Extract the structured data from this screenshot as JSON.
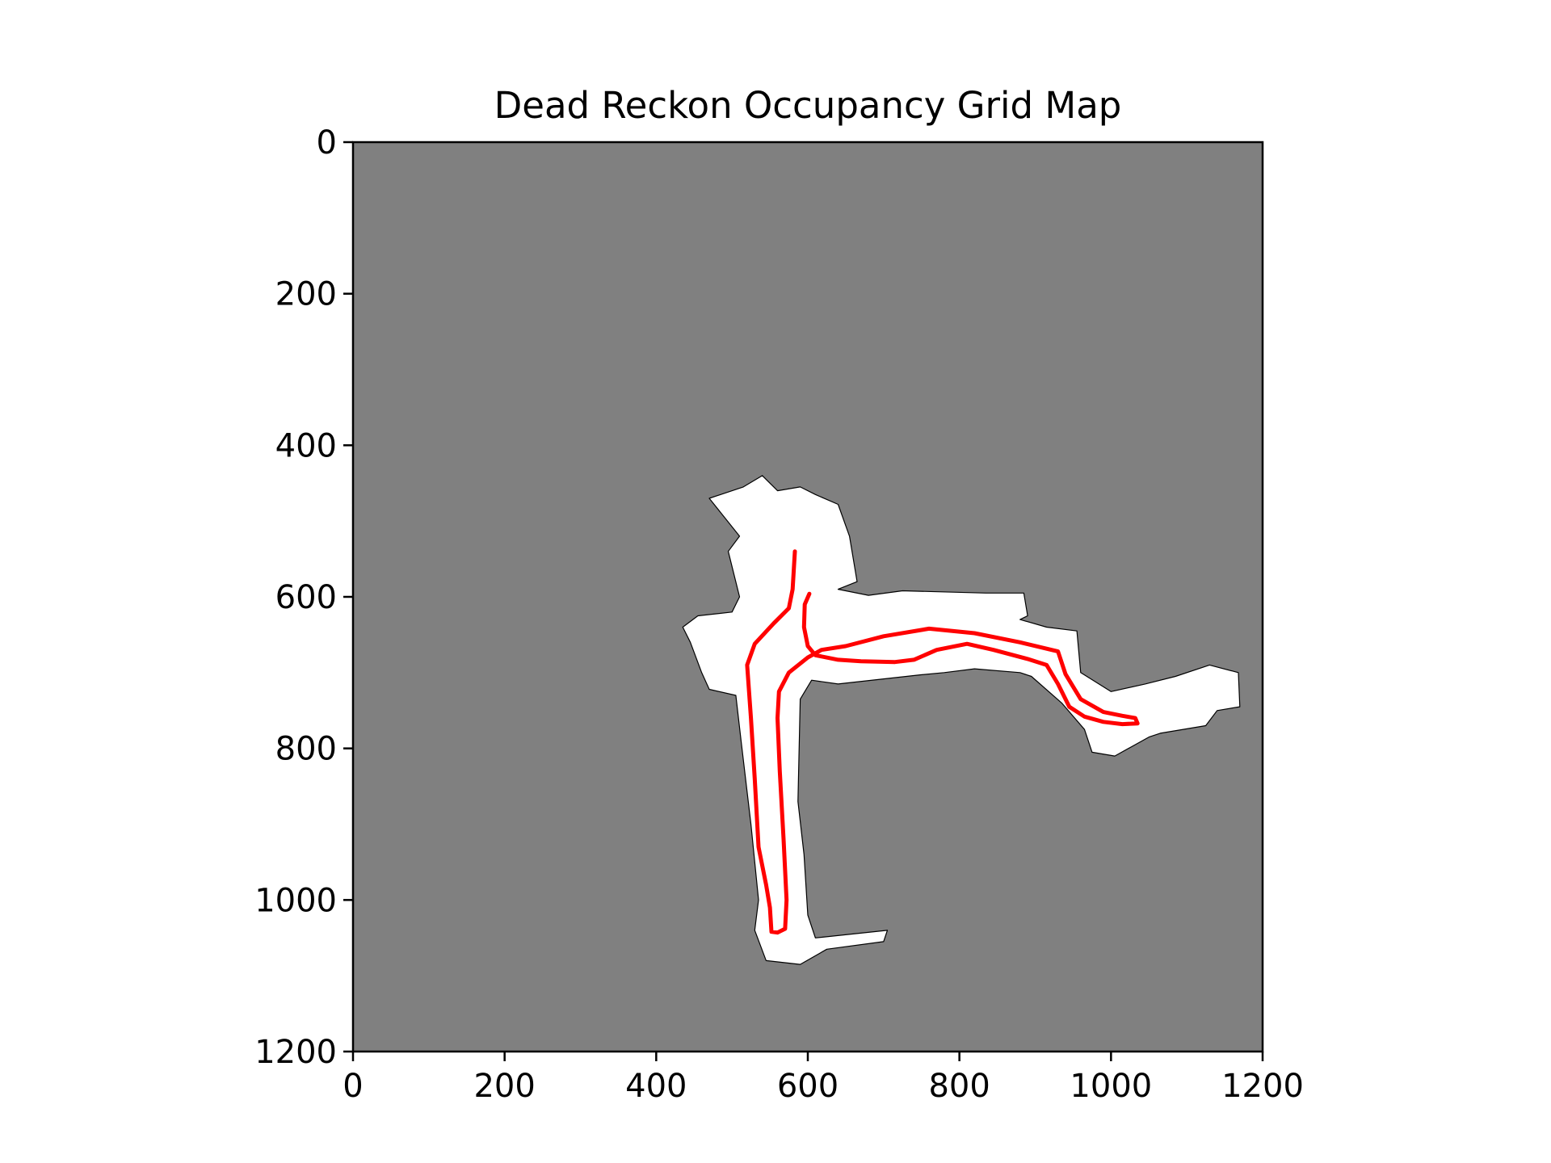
{
  "chart_data": {
    "type": "heatmap",
    "title": "Dead Reckon Occupancy Grid Map",
    "xlabel": "",
    "ylabel": "",
    "xlim": [
      0,
      1200
    ],
    "ylim": [
      1200,
      0
    ],
    "y_axis_inverted": true,
    "xticks": [
      0,
      200,
      400,
      600,
      800,
      1000,
      1200
    ],
    "yticks": [
      0,
      200,
      400,
      600,
      800,
      1000,
      1200
    ],
    "grid": false,
    "colors": {
      "unknown": "#808080",
      "free": "#ffffff",
      "occupied": "#000000",
      "trajectory": "#ff0000"
    },
    "free_regions": [
      [
        [
          515,
          455
        ],
        [
          540,
          440
        ],
        [
          560,
          460
        ],
        [
          590,
          455
        ],
        [
          610,
          465
        ],
        [
          640,
          478
        ],
        [
          655,
          520
        ],
        [
          665,
          580
        ],
        [
          640,
          590
        ],
        [
          680,
          598
        ],
        [
          725,
          592
        ],
        [
          835,
          595
        ],
        [
          885,
          595
        ],
        [
          890,
          625
        ],
        [
          880,
          630
        ],
        [
          915,
          640
        ],
        [
          955,
          645
        ],
        [
          960,
          700
        ],
        [
          1000,
          725
        ],
        [
          1045,
          715
        ],
        [
          1085,
          705
        ],
        [
          1130,
          690
        ],
        [
          1168,
          700
        ],
        [
          1170,
          745
        ],
        [
          1140,
          750
        ],
        [
          1125,
          770
        ],
        [
          1065,
          780
        ],
        [
          1050,
          785
        ],
        [
          1005,
          810
        ],
        [
          975,
          805
        ],
        [
          965,
          775
        ],
        [
          935,
          740
        ],
        [
          895,
          705
        ],
        [
          880,
          700
        ],
        [
          820,
          695
        ],
        [
          780,
          700
        ],
        [
          748,
          703
        ],
        [
          640,
          715
        ],
        [
          605,
          710
        ],
        [
          590,
          735
        ],
        [
          587,
          870
        ],
        [
          595,
          940
        ],
        [
          600,
          1020
        ],
        [
          610,
          1050
        ],
        [
          705,
          1040
        ],
        [
          700,
          1055
        ],
        [
          625,
          1065
        ],
        [
          590,
          1085
        ],
        [
          545,
          1080
        ],
        [
          530,
          1040
        ],
        [
          535,
          1000
        ],
        [
          525,
          900
        ],
        [
          512,
          790
        ],
        [
          505,
          730
        ],
        [
          470,
          722
        ],
        [
          460,
          700
        ],
        [
          445,
          660
        ],
        [
          435,
          640
        ],
        [
          455,
          625
        ],
        [
          500,
          620
        ],
        [
          510,
          600
        ],
        [
          495,
          540
        ],
        [
          510,
          520
        ],
        [
          470,
          470
        ]
      ]
    ],
    "trajectories": [
      [
        [
          583,
          540
        ],
        [
          580,
          590
        ],
        [
          575,
          615
        ],
        [
          555,
          635
        ],
        [
          530,
          662
        ],
        [
          520,
          690
        ],
        [
          525,
          760
        ],
        [
          530,
          840
        ],
        [
          535,
          930
        ],
        [
          545,
          980
        ],
        [
          550,
          1010
        ],
        [
          552,
          1042
        ],
        [
          560,
          1043
        ],
        [
          570,
          1038
        ],
        [
          572,
          1000
        ],
        [
          568,
          920
        ],
        [
          563,
          830
        ],
        [
          560,
          760
        ],
        [
          562,
          725
        ],
        [
          575,
          700
        ],
        [
          600,
          680
        ],
        [
          618,
          670
        ],
        [
          650,
          665
        ],
        [
          700,
          652
        ],
        [
          760,
          642
        ],
        [
          820,
          648
        ],
        [
          880,
          660
        ],
        [
          930,
          672
        ],
        [
          940,
          702
        ],
        [
          960,
          735
        ],
        [
          990,
          752
        ],
        [
          1015,
          757
        ],
        [
          1032,
          760
        ],
        [
          1035,
          767
        ],
        [
          1015,
          768
        ],
        [
          990,
          765
        ],
        [
          965,
          758
        ],
        [
          945,
          745
        ],
        [
          930,
          715
        ],
        [
          915,
          690
        ],
        [
          890,
          682
        ],
        [
          845,
          670
        ],
        [
          810,
          662
        ],
        [
          770,
          670
        ],
        [
          740,
          683
        ],
        [
          715,
          686
        ],
        [
          670,
          685
        ],
        [
          640,
          683
        ],
        [
          610,
          677
        ],
        [
          600,
          665
        ],
        [
          595,
          640
        ],
        [
          596,
          610
        ],
        [
          602,
          596
        ]
      ]
    ]
  }
}
